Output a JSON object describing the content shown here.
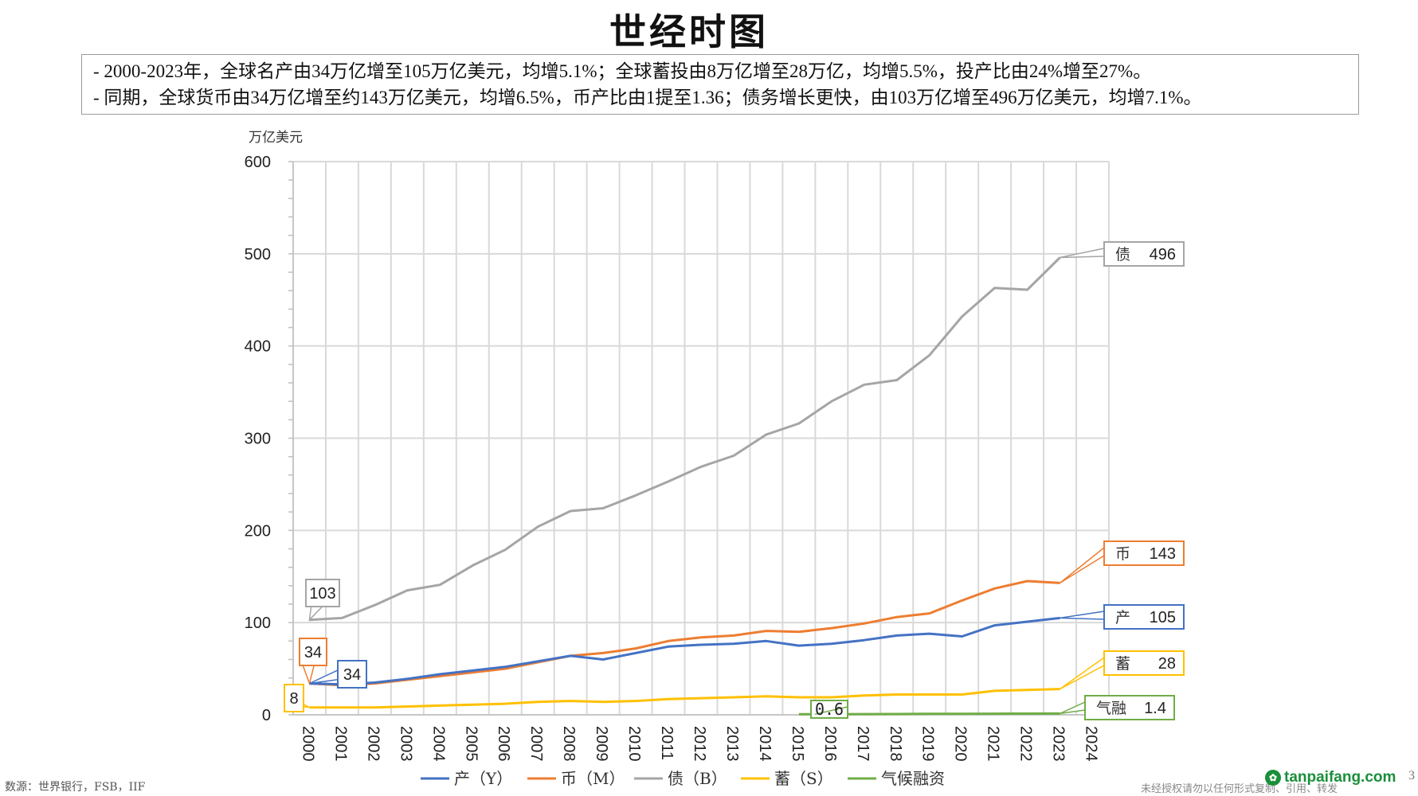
{
  "title": "世经时图",
  "summary": {
    "line1": "- 2000-2023年，全球名产由34万亿增至105万亿美元，均增5.1%；全球蓄投由8万亿增至28万亿，均增5.5%，投产比由24%增至27%。",
    "line2": "- 同期，全球货币由34万亿增至约143万亿美元，均增6.5%，币产比由1提至1.36；债务增长更快，由103万亿增至496万亿美元，均增7.1%。"
  },
  "footnote": "数源：世界银行，FSB，IIF",
  "copyright": "未经授权请勿以任何形式复制、引用、转发",
  "watermark": "tanpaifang.com",
  "page_number": "3",
  "chart_data": {
    "type": "line",
    "title": "世经时图",
    "ylabel": "万亿美元",
    "xlabel": "",
    "ylim": [
      0,
      600
    ],
    "yticks": [
      0,
      100,
      200,
      300,
      400,
      500,
      600
    ],
    "grid": true,
    "legend_position": "bottom",
    "categories": [
      "2000",
      "2001",
      "2002",
      "2003",
      "2004",
      "2005",
      "2006",
      "2007",
      "2008",
      "2009",
      "2010",
      "2011",
      "2012",
      "2013",
      "2014",
      "2015",
      "2016",
      "2017",
      "2018",
      "2019",
      "2020",
      "2021",
      "2022",
      "2023",
      "2024"
    ],
    "series": [
      {
        "name": "产（Y）",
        "short": "产",
        "color": "#4472c4",
        "values": [
          34,
          33,
          35,
          39,
          44,
          48,
          52,
          58,
          64,
          60,
          67,
          74,
          76,
          77,
          80,
          75,
          77,
          81,
          86,
          88,
          85,
          97,
          101,
          105,
          null
        ],
        "start_label": "34",
        "end_label": "105"
      },
      {
        "name": "币（M）",
        "short": "币",
        "color": "#ed7d31",
        "values": [
          34,
          32,
          34,
          38,
          42,
          46,
          50,
          57,
          64,
          67,
          72,
          80,
          84,
          86,
          91,
          90,
          94,
          99,
          106,
          110,
          124,
          137,
          145,
          143,
          null
        ],
        "start_label": "34",
        "end_label": "143"
      },
      {
        "name": "债（B）",
        "short": "债",
        "color": "#a5a5a5",
        "values": [
          103,
          105,
          119,
          135,
          141,
          162,
          179,
          204,
          221,
          224,
          238,
          253,
          269,
          281,
          304,
          316,
          340,
          358,
          363,
          390,
          432,
          463,
          461,
          496,
          null
        ],
        "start_label": "103",
        "end_label": "496"
      },
      {
        "name": "蓄（S）",
        "short": "蓄",
        "color": "#ffc000",
        "values": [
          8,
          8,
          8,
          9,
          10,
          11,
          12,
          14,
          15,
          14,
          15,
          17,
          18,
          19,
          20,
          19,
          19,
          21,
          22,
          22,
          22,
          26,
          27,
          28,
          null
        ],
        "start_label": "8",
        "end_label": "28"
      },
      {
        "name": "气候融资",
        "short": "气融",
        "color": "#70ad47",
        "values": [
          null,
          null,
          null,
          null,
          null,
          null,
          null,
          null,
          null,
          null,
          null,
          null,
          null,
          null,
          null,
          0.6,
          0.7,
          0.8,
          0.9,
          1.0,
          1.0,
          1.2,
          1.3,
          1.4,
          null
        ],
        "start_label": "0.6",
        "end_label": "1.4"
      }
    ]
  }
}
